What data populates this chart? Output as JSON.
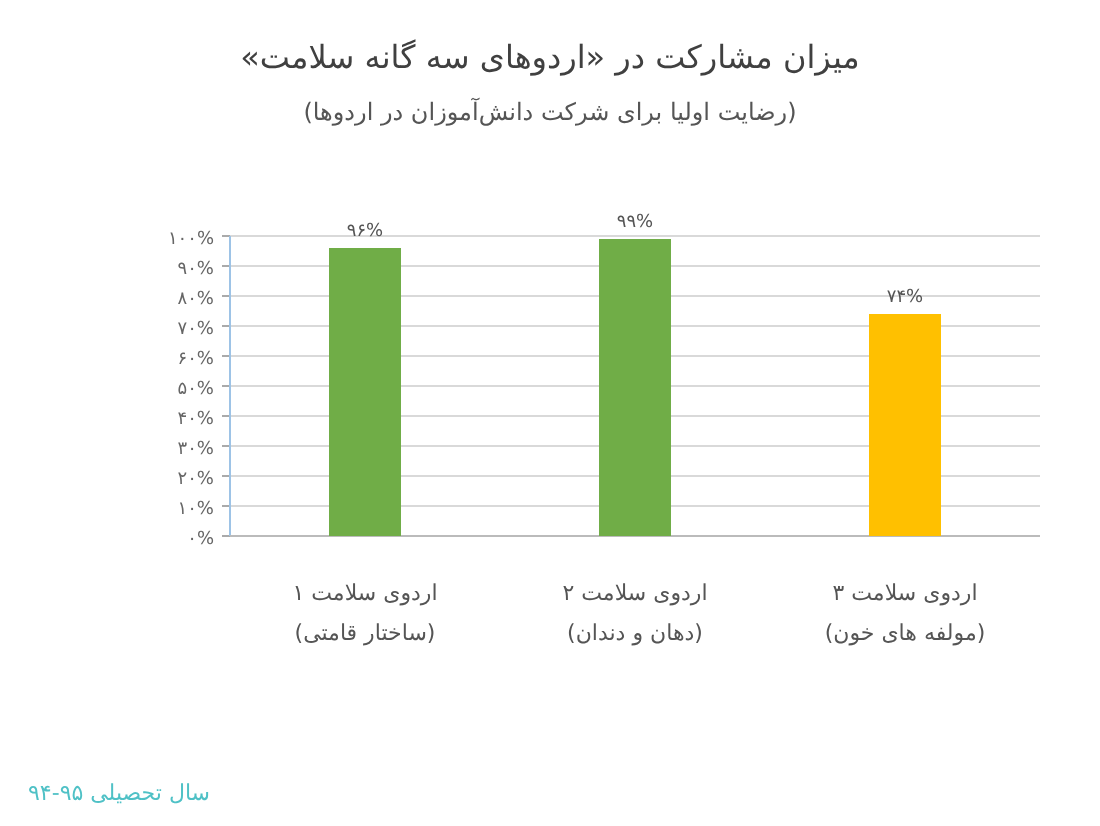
{
  "chart_data": {
    "type": "bar",
    "title": "میزان مشارکت در «اردوهای سه گانه سلامت»",
    "subtitle": "(رضایت اولیا برای شرکت دانش‌آموزان در اردوها)",
    "categories": [
      "اردوی سلامت ۱\n(ساختار قامتی)",
      "اردوی سلامت ۲\n(دهان و دندان)",
      "اردوی سلامت ۳\n(مولفه های خون)"
    ],
    "values": [
      96,
      99,
      74
    ],
    "value_labels": [
      "۹۶%",
      "۹۹%",
      "۷۴%"
    ],
    "colors": [
      "#70ad47",
      "#70ad47",
      "#ffc000"
    ],
    "ylim": [
      0,
      100
    ],
    "yticks": [
      {
        "value": 0,
        "label": "۰%"
      },
      {
        "value": 10,
        "label": "۱۰%"
      },
      {
        "value": 20,
        "label": "۲۰%"
      },
      {
        "value": 30,
        "label": "۳۰%"
      },
      {
        "value": 40,
        "label": "۴۰%"
      },
      {
        "value": 50,
        "label": "۵۰%"
      },
      {
        "value": 60,
        "label": "۶۰%"
      },
      {
        "value": 70,
        "label": "۷۰%"
      },
      {
        "value": 80,
        "label": "۸۰%"
      },
      {
        "value": 90,
        "label": "۹۰%"
      },
      {
        "value": 100,
        "label": "۱۰۰%"
      }
    ],
    "grid": "y",
    "annotations": [
      "سال تحصیلی ۹۵-۹۴"
    ]
  }
}
